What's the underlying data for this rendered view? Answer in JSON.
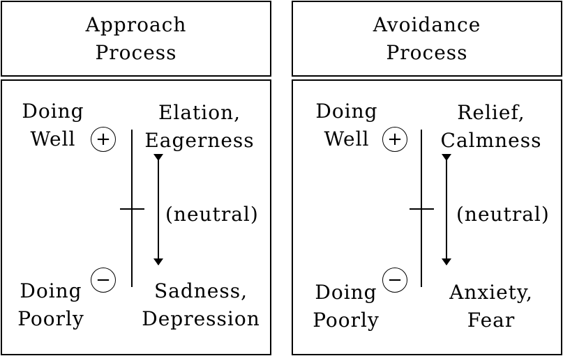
{
  "panels": [
    {
      "title_line1": "Approach",
      "title_line2": "Process",
      "top_state_line1": "Doing",
      "top_state_line2": "Well",
      "bottom_state_line1": "Doing",
      "bottom_state_line2": "Poorly",
      "top_emotion_line1": "Elation,",
      "top_emotion_line2": "Eagerness",
      "bottom_emotion_line1": "Sadness,",
      "bottom_emotion_line2": "Depression",
      "neutral_label": "(neutral)",
      "plus_symbol": "+",
      "minus_symbol": "−"
    },
    {
      "title_line1": "Avoidance",
      "title_line2": "Process",
      "top_state_line1": "Doing",
      "top_state_line2": "Well",
      "bottom_state_line1": "Doing",
      "bottom_state_line2": "Poorly",
      "top_emotion_line1": "Relief,",
      "top_emotion_line2": "Calmness",
      "bottom_emotion_line1": "Anxiety,",
      "bottom_emotion_line2": "Fear",
      "neutral_label": "(neutral)",
      "plus_symbol": "+",
      "minus_symbol": "−"
    }
  ]
}
